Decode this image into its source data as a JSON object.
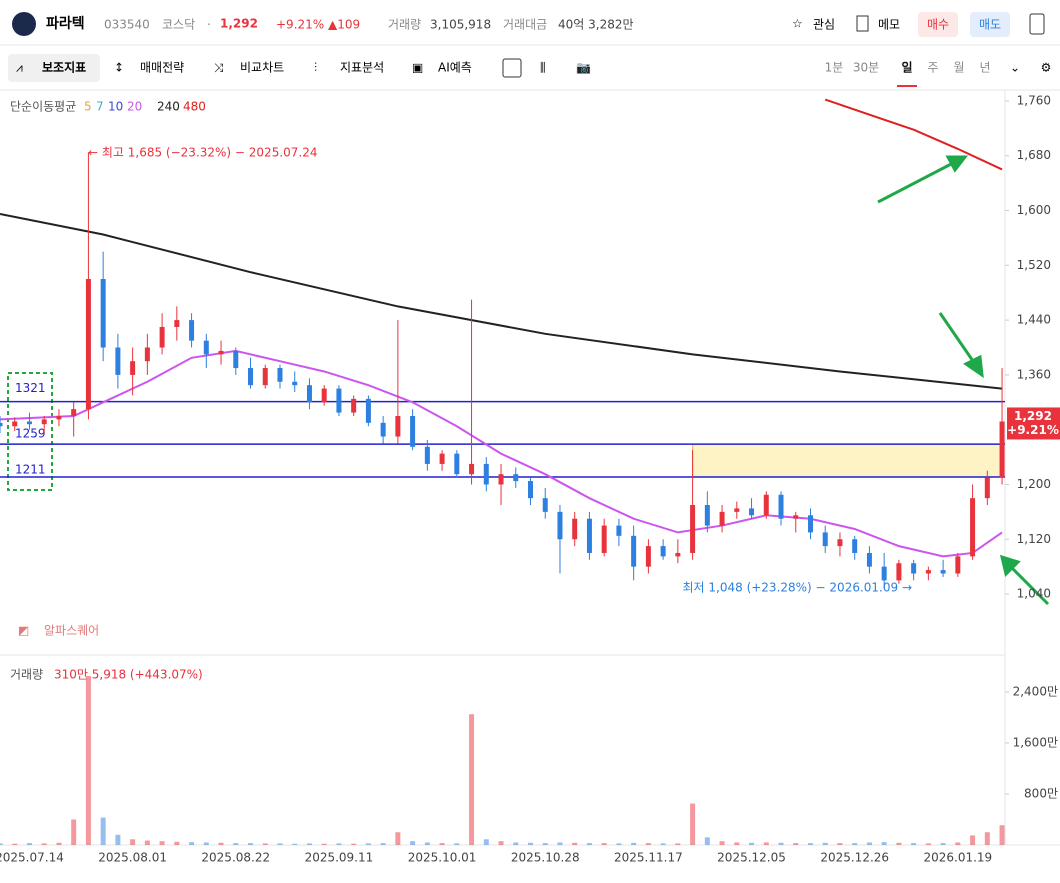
{
  "header": {
    "name": "파라텍",
    "code": "033540",
    "market": "코스닥",
    "separator": "·",
    "price": "1,292",
    "change_pct": "+9.21%",
    "change": "▲109",
    "volume_label": "거래량",
    "volume": "3,105,918",
    "amount_label": "거래대금",
    "amount": "40억 3,282만",
    "watch": "관심",
    "memo": "메모",
    "buy": "매수",
    "sell": "매도"
  },
  "toolbar": {
    "tools": [
      "보조지표",
      "매매전략",
      "비교차트",
      "지표분석",
      "AI예측"
    ],
    "periods": [
      "1분",
      "30분",
      "일",
      "주",
      "월",
      "년"
    ],
    "active_period": "일"
  },
  "watermark": "알파스퀘어",
  "chart_data": {
    "type": "candlestick",
    "ma_legend": {
      "title": "단순이동평균",
      "periods": [
        {
          "label": "5",
          "color": "#e9a23b"
        },
        {
          "label": "7",
          "color": "#3fb0c9"
        },
        {
          "label": "10",
          "color": "#3b49d6"
        },
        {
          "label": "20",
          "color": "#cc55ee"
        },
        {
          "label": "240",
          "color": "#222222"
        },
        {
          "label": "480",
          "color": "#e02020"
        }
      ]
    },
    "xlim": [
      -4,
      132.4
    ],
    "xticks": [
      {
        "value": 0,
        "label": "2025.07.14"
      },
      {
        "value": 14,
        "label": "2025.08.01"
      },
      {
        "value": 28,
        "label": "2025.08.22"
      },
      {
        "value": 42,
        "label": "2025.09.11"
      },
      {
        "value": 56,
        "label": "2025.10.01"
      },
      {
        "value": 70,
        "label": "2025.10.28"
      },
      {
        "value": 84,
        "label": "2025.11.17"
      },
      {
        "value": 98,
        "label": "2025.12.05"
      },
      {
        "value": 112,
        "label": "2025.12.26"
      },
      {
        "value": 126,
        "label": "2026.01.19"
      }
    ],
    "ylim": [
      951,
      1776
    ],
    "yticks": [
      {
        "value": 1040,
        "label": "1,040"
      },
      {
        "value": 1120,
        "label": "1,120"
      },
      {
        "value": 1200,
        "label": "1,200"
      },
      {
        "value": 1360,
        "label": "1,360"
      },
      {
        "value": 1440,
        "label": "1,440"
      },
      {
        "value": 1520,
        "label": "1,520"
      },
      {
        "value": 1600,
        "label": "1,600"
      },
      {
        "value": 1680,
        "label": "1,680"
      },
      {
        "value": 1760,
        "label": "1,760"
      }
    ],
    "up_color": "#e8323c",
    "down_color": "#2d7fe0",
    "x": [
      -4,
      -2,
      0,
      2,
      4,
      6,
      8,
      10,
      12,
      14,
      16,
      18,
      20,
      22,
      24,
      26,
      28,
      30,
      32,
      34,
      36,
      38,
      40,
      42,
      44,
      46,
      48,
      50,
      52,
      54,
      56,
      58,
      60,
      62,
      64,
      66,
      68,
      70,
      72,
      74,
      76,
      78,
      80,
      82,
      84,
      86,
      88,
      90,
      92,
      94,
      96,
      98,
      100,
      102,
      104,
      106,
      108,
      110,
      112,
      114,
      116,
      118,
      120,
      122,
      124,
      126,
      128,
      130,
      132
    ],
    "candles": [
      [
        1290,
        1300,
        1275,
        1285
      ],
      [
        1285,
        1298,
        1278,
        1292
      ],
      [
        1292,
        1305,
        1280,
        1288
      ],
      [
        1288,
        1300,
        1275,
        1295
      ],
      [
        1295,
        1310,
        1285,
        1300
      ],
      [
        1300,
        1320,
        1270,
        1310
      ],
      [
        1310,
        1685,
        1295,
        1500
      ],
      [
        1500,
        1540,
        1380,
        1400
      ],
      [
        1400,
        1420,
        1340,
        1360
      ],
      [
        1360,
        1400,
        1330,
        1380
      ],
      [
        1380,
        1420,
        1360,
        1400
      ],
      [
        1400,
        1450,
        1390,
        1430
      ],
      [
        1430,
        1460,
        1410,
        1440
      ],
      [
        1440,
        1450,
        1400,
        1410
      ],
      [
        1410,
        1420,
        1370,
        1390
      ],
      [
        1390,
        1410,
        1375,
        1395
      ],
      [
        1395,
        1400,
        1360,
        1370
      ],
      [
        1370,
        1385,
        1340,
        1345
      ],
      [
        1345,
        1375,
        1340,
        1370
      ],
      [
        1370,
        1375,
        1340,
        1350
      ],
      [
        1350,
        1365,
        1335,
        1345
      ],
      [
        1345,
        1355,
        1310,
        1320
      ],
      [
        1320,
        1345,
        1315,
        1340
      ],
      [
        1340,
        1345,
        1300,
        1305
      ],
      [
        1305,
        1330,
        1300,
        1325
      ],
      [
        1325,
        1330,
        1285,
        1290
      ],
      [
        1290,
        1300,
        1260,
        1270
      ],
      [
        1270,
        1440,
        1260,
        1300
      ],
      [
        1300,
        1310,
        1250,
        1255
      ],
      [
        1255,
        1265,
        1220,
        1230
      ],
      [
        1230,
        1250,
        1220,
        1245
      ],
      [
        1245,
        1250,
        1210,
        1215
      ],
      [
        1215,
        1470,
        1200,
        1230
      ],
      [
        1230,
        1240,
        1190,
        1200
      ],
      [
        1200,
        1230,
        1170,
        1215
      ],
      [
        1215,
        1225,
        1195,
        1205
      ],
      [
        1205,
        1210,
        1170,
        1180
      ],
      [
        1180,
        1195,
        1150,
        1160
      ],
      [
        1160,
        1170,
        1070,
        1120
      ],
      [
        1120,
        1160,
        1110,
        1150
      ],
      [
        1150,
        1160,
        1090,
        1100
      ],
      [
        1100,
        1150,
        1095,
        1140
      ],
      [
        1140,
        1150,
        1110,
        1125
      ],
      [
        1125,
        1140,
        1060,
        1080
      ],
      [
        1080,
        1120,
        1070,
        1110
      ],
      [
        1110,
        1120,
        1090,
        1095
      ],
      [
        1095,
        1120,
        1085,
        1100
      ],
      [
        1100,
        1250,
        1090,
        1170
      ],
      [
        1170,
        1190,
        1130,
        1140
      ],
      [
        1140,
        1170,
        1130,
        1160
      ],
      [
        1160,
        1175,
        1150,
        1165
      ],
      [
        1165,
        1180,
        1150,
        1155
      ],
      [
        1155,
        1190,
        1150,
        1185
      ],
      [
        1185,
        1190,
        1140,
        1150
      ],
      [
        1150,
        1160,
        1130,
        1155
      ],
      [
        1155,
        1165,
        1120,
        1130
      ],
      [
        1130,
        1140,
        1100,
        1110
      ],
      [
        1110,
        1130,
        1095,
        1120
      ],
      [
        1120,
        1125,
        1090,
        1100
      ],
      [
        1100,
        1110,
        1070,
        1080
      ],
      [
        1080,
        1100,
        1048,
        1060
      ],
      [
        1060,
        1090,
        1055,
        1085
      ],
      [
        1085,
        1090,
        1060,
        1070
      ],
      [
        1070,
        1080,
        1060,
        1075
      ],
      [
        1075,
        1090,
        1065,
        1070
      ],
      [
        1070,
        1100,
        1065,
        1095
      ],
      [
        1095,
        1200,
        1090,
        1180
      ],
      [
        1180,
        1220,
        1170,
        1210
      ],
      [
        1210,
        1370,
        1200,
        1292
      ]
    ],
    "ma_lines": [
      {
        "period": "20",
        "x": [
          -4,
          6,
          10,
          16,
          22,
          28,
          34,
          40,
          46,
          52,
          58,
          64,
          70,
          76,
          82,
          88,
          94,
          100,
          106,
          112,
          118,
          124,
          128,
          132
        ],
        "values": [
          1295,
          1300,
          1320,
          1350,
          1385,
          1395,
          1380,
          1365,
          1345,
          1320,
          1285,
          1245,
          1215,
          1180,
          1150,
          1130,
          1140,
          1155,
          1150,
          1135,
          1110,
          1095,
          1100,
          1130
        ]
      },
      {
        "period": "240",
        "x": [
          -4,
          10,
          30,
          50,
          70,
          90,
          110,
          132
        ],
        "values": [
          1595,
          1565,
          1510,
          1460,
          1420,
          1390,
          1365,
          1340
        ]
      },
      {
        "period": "480",
        "x": [
          108,
          120,
          126,
          132
        ],
        "values": [
          1762,
          1718,
          1690,
          1660
        ]
      }
    ],
    "levels": [
      {
        "value": 1321,
        "label": "1321",
        "color": "#2020d0"
      },
      {
        "value": 1259,
        "label": "1259",
        "color": "#2020d0"
      },
      {
        "value": 1211,
        "label": "1211",
        "color": "#2020d0"
      }
    ],
    "zone": {
      "x": [
        90,
        132
      ],
      "y": [
        1211,
        1259
      ]
    },
    "last_price": {
      "value": 1292,
      "label": "1,292",
      "change": "+9.21%"
    },
    "high_note": "← 최고 1,685 (−23.32%) − 2025.07.24",
    "low_note": "최저 1,048 (+23.28%) − 2026.01.09 →",
    "volume": {
      "title": "거래량",
      "current": "310만 5,918 (+443.07%)",
      "ylim": [
        0,
        2900
      ],
      "yticks": [
        {
          "value": 800,
          "label": "800만"
        },
        {
          "value": 1600,
          "label": "1,600만"
        },
        {
          "value": 2400,
          "label": "2,400만"
        }
      ],
      "values": [
        25,
        20,
        30,
        25,
        35,
        400,
        2650,
        430,
        160,
        90,
        70,
        60,
        50,
        45,
        40,
        35,
        30,
        30,
        25,
        25,
        20,
        25,
        20,
        25,
        20,
        25,
        30,
        200,
        60,
        40,
        30,
        25,
        2050,
        90,
        60,
        40,
        35,
        30,
        40,
        35,
        30,
        30,
        25,
        35,
        30,
        25,
        25,
        650,
        120,
        60,
        40,
        35,
        40,
        35,
        30,
        30,
        35,
        30,
        30,
        40,
        45,
        35,
        30,
        25,
        30,
        40,
        150,
        200,
        310
      ]
    }
  }
}
